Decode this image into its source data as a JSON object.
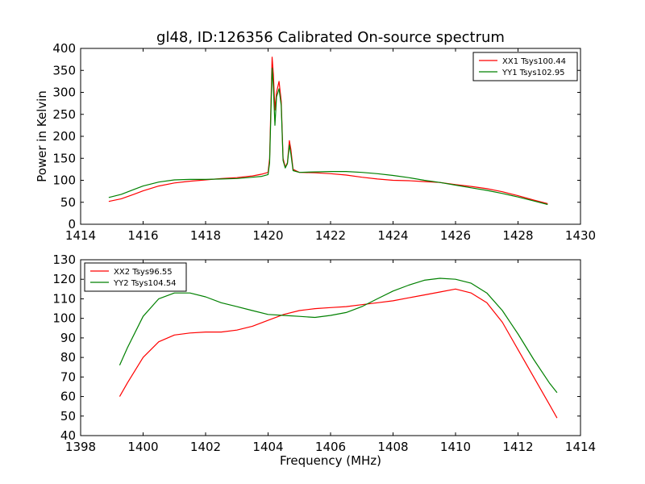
{
  "chart_data": [
    {
      "type": "line",
      "title": "gl48, ID:126356 Calibrated On-source spectrum",
      "xlabel": "",
      "ylabel": "Power in Kelvin",
      "xlim": [
        1414,
        1430
      ],
      "ylim": [
        0,
        400
      ],
      "xticks": [
        1414,
        1416,
        1418,
        1420,
        1422,
        1424,
        1426,
        1428,
        1430
      ],
      "yticks": [
        0,
        50,
        100,
        150,
        200,
        250,
        300,
        350,
        400
      ],
      "legend_position": "top-right",
      "grid": false,
      "series": [
        {
          "name": "XX1 Tsys100.44",
          "color": "#ff0000",
          "points": [
            [
              1414.9,
              52
            ],
            [
              1415.3,
              58
            ],
            [
              1415.7,
              68
            ],
            [
              1416.0,
              76
            ],
            [
              1416.5,
              87
            ],
            [
              1417.0,
              94
            ],
            [
              1417.5,
              98
            ],
            [
              1418.0,
              101
            ],
            [
              1418.5,
              104
            ],
            [
              1419.0,
              106
            ],
            [
              1419.5,
              110
            ],
            [
              1419.8,
              114
            ],
            [
              1420.0,
              118
            ],
            [
              1420.05,
              150
            ],
            [
              1420.1,
              300
            ],
            [
              1420.13,
              380
            ],
            [
              1420.17,
              340
            ],
            [
              1420.22,
              260
            ],
            [
              1420.27,
              300
            ],
            [
              1420.35,
              325
            ],
            [
              1420.42,
              280
            ],
            [
              1420.48,
              150
            ],
            [
              1420.55,
              130
            ],
            [
              1420.62,
              140
            ],
            [
              1420.68,
              190
            ],
            [
              1420.73,
              170
            ],
            [
              1420.8,
              125
            ],
            [
              1421.0,
              118
            ],
            [
              1421.5,
              117
            ],
            [
              1422.0,
              115
            ],
            [
              1422.5,
              112
            ],
            [
              1423.0,
              107
            ],
            [
              1423.5,
              103
            ],
            [
              1424.0,
              100
            ],
            [
              1424.5,
              99
            ],
            [
              1425.0,
              97
            ],
            [
              1425.5,
              95
            ],
            [
              1426.0,
              90
            ],
            [
              1426.5,
              86
            ],
            [
              1427.0,
              81
            ],
            [
              1427.5,
              74
            ],
            [
              1428.0,
              65
            ],
            [
              1428.5,
              55
            ],
            [
              1428.95,
              47
            ]
          ]
        },
        {
          "name": "YY1 Tsys102.95",
          "color": "#008000",
          "points": [
            [
              1414.9,
              61
            ],
            [
              1415.3,
              68
            ],
            [
              1415.7,
              79
            ],
            [
              1416.0,
              87
            ],
            [
              1416.5,
              96
            ],
            [
              1417.0,
              101
            ],
            [
              1417.5,
              102
            ],
            [
              1418.0,
              102
            ],
            [
              1418.5,
              103
            ],
            [
              1419.0,
              104
            ],
            [
              1419.5,
              107
            ],
            [
              1419.8,
              109
            ],
            [
              1420.0,
              113
            ],
            [
              1420.05,
              140
            ],
            [
              1420.1,
              280
            ],
            [
              1420.13,
              355
            ],
            [
              1420.17,
              310
            ],
            [
              1420.22,
              225
            ],
            [
              1420.27,
              290
            ],
            [
              1420.35,
              308
            ],
            [
              1420.42,
              270
            ],
            [
              1420.48,
              145
            ],
            [
              1420.55,
              128
            ],
            [
              1420.62,
              138
            ],
            [
              1420.68,
              180
            ],
            [
              1420.73,
              160
            ],
            [
              1420.8,
              122
            ],
            [
              1421.0,
              118
            ],
            [
              1421.5,
              119
            ],
            [
              1422.0,
              120
            ],
            [
              1422.5,
              120
            ],
            [
              1423.0,
              118
            ],
            [
              1423.5,
              115
            ],
            [
              1424.0,
              111
            ],
            [
              1424.5,
              106
            ],
            [
              1425.0,
              100
            ],
            [
              1425.5,
              95
            ],
            [
              1426.0,
              89
            ],
            [
              1426.5,
              83
            ],
            [
              1427.0,
              77
            ],
            [
              1427.5,
              70
            ],
            [
              1428.0,
              62
            ],
            [
              1428.5,
              53
            ],
            [
              1428.95,
              45
            ]
          ]
        }
      ]
    },
    {
      "type": "line",
      "title": "",
      "xlabel": "Frequency (MHz)",
      "ylabel": "",
      "xlim": [
        1398,
        1414
      ],
      "ylim": [
        40,
        130
      ],
      "xticks": [
        1398,
        1400,
        1402,
        1404,
        1406,
        1408,
        1410,
        1412,
        1414
      ],
      "yticks": [
        40,
        50,
        60,
        70,
        80,
        90,
        100,
        110,
        120,
        130
      ],
      "legend_position": "top-left",
      "grid": false,
      "series": [
        {
          "name": "XX2 Tsys96.55",
          "color": "#ff0000",
          "points": [
            [
              1399.25,
              60
            ],
            [
              1399.5,
              67
            ],
            [
              1400.0,
              80
            ],
            [
              1400.5,
              88
            ],
            [
              1401.0,
              91.5
            ],
            [
              1401.5,
              92.5
            ],
            [
              1402.0,
              93
            ],
            [
              1402.5,
              93
            ],
            [
              1403.0,
              94
            ],
            [
              1403.5,
              96
            ],
            [
              1404.0,
              99
            ],
            [
              1404.5,
              102
            ],
            [
              1405.0,
              104
            ],
            [
              1405.5,
              105
            ],
            [
              1406.0,
              105.5
            ],
            [
              1406.5,
              106
            ],
            [
              1407.0,
              107
            ],
            [
              1407.5,
              108
            ],
            [
              1408.0,
              109
            ],
            [
              1408.5,
              110.5
            ],
            [
              1409.0,
              112
            ],
            [
              1409.5,
              113.5
            ],
            [
              1410.0,
              115
            ],
            [
              1410.5,
              113
            ],
            [
              1411.0,
              108
            ],
            [
              1411.5,
              98
            ],
            [
              1412.0,
              84
            ],
            [
              1412.5,
              70
            ],
            [
              1413.0,
              56
            ],
            [
              1413.25,
              49
            ]
          ]
        },
        {
          "name": "YY2 Tsys104.54",
          "color": "#008000",
          "points": [
            [
              1399.25,
              76
            ],
            [
              1399.5,
              85
            ],
            [
              1400.0,
              101
            ],
            [
              1400.5,
              110
            ],
            [
              1401.0,
              113
            ],
            [
              1401.5,
              113
            ],
            [
              1402.0,
              111
            ],
            [
              1402.5,
              108
            ],
            [
              1403.0,
              106
            ],
            [
              1403.5,
              104
            ],
            [
              1404.0,
              102
            ],
            [
              1404.5,
              101.5
            ],
            [
              1405.0,
              101
            ],
            [
              1405.5,
              100.5
            ],
            [
              1406.0,
              101.5
            ],
            [
              1406.5,
              103
            ],
            [
              1407.0,
              106
            ],
            [
              1407.5,
              110
            ],
            [
              1408.0,
              114
            ],
            [
              1408.5,
              117
            ],
            [
              1409.0,
              119.5
            ],
            [
              1409.5,
              120.5
            ],
            [
              1410.0,
              120
            ],
            [
              1410.5,
              118
            ],
            [
              1411.0,
              113
            ],
            [
              1411.5,
              104
            ],
            [
              1412.0,
              92
            ],
            [
              1412.5,
              79
            ],
            [
              1413.0,
              67
            ],
            [
              1413.25,
              62
            ]
          ]
        }
      ]
    }
  ]
}
